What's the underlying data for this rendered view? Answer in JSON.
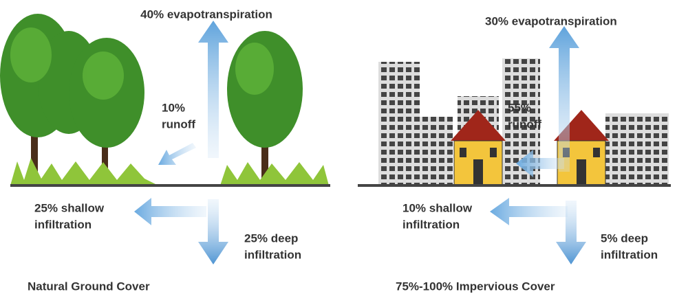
{
  "panels": [
    {
      "evapotranspiration": "40% evapotranspiration",
      "runoff": [
        "10%",
        "runoff"
      ],
      "shallow_infiltration": [
        "25% shallow",
        "infiltration"
      ],
      "deep_infiltration": [
        "25% deep",
        "infiltration"
      ],
      "caption": "Natural Ground Cover"
    },
    {
      "evapotranspiration": "30% evapotranspiration",
      "runoff": [
        "55%",
        "runoff"
      ],
      "shallow_infiltration": [
        "10% shallow",
        "infiltration"
      ],
      "deep_infiltration": [
        "5% deep",
        "infiltration"
      ],
      "caption": "75%-100% Impervious Cover"
    }
  ]
}
